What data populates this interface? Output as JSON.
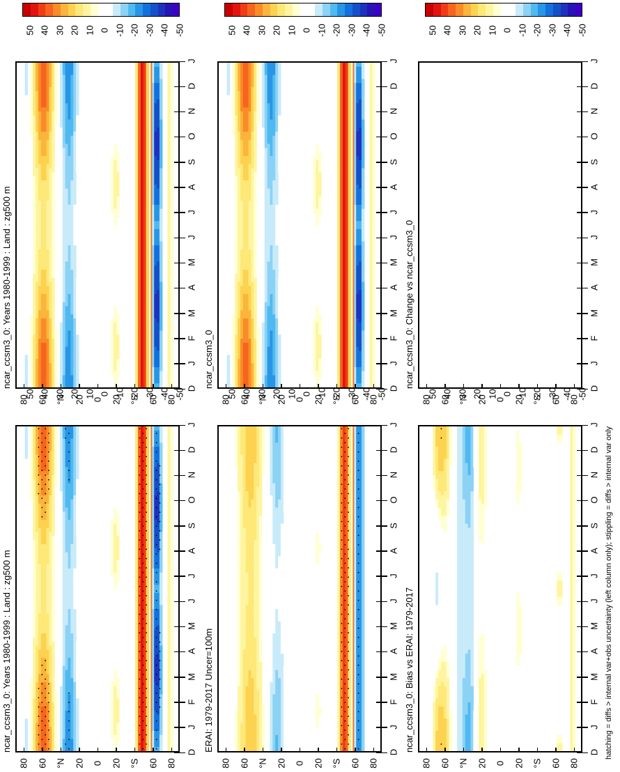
{
  "figure": {
    "footnote": "hatching = diffs > internal var+obs uncertainty (left column only); stippling = diffs > internal var only"
  },
  "panels": [
    {
      "id": "model-left",
      "title": "ncar_ccsm3_0: Years 1980-1999 : Land : zg500 m"
    },
    {
      "id": "model-right",
      "title": "ncar_ccsm3_0: Years 1980-1999 : Land : zg500 m"
    },
    {
      "id": "obs-left",
      "title": "ERAI: 1979-2017 Uncer=100m"
    },
    {
      "id": "model-right-2",
      "title": "ncar_ccsm3_0"
    },
    {
      "id": "bias-left",
      "title": "ncar_ccsm3_0: Bias vs ERAI: 1979-2017"
    },
    {
      "id": "change-right",
      "title": "ncar_ccsm3_0: Change vs ncar_ccsm3_0"
    }
  ],
  "axes": {
    "latitude_labels": [
      "80",
      "60",
      "°N",
      "20",
      "0",
      "20",
      "°S",
      "60",
      "80"
    ],
    "month_labels": [
      "D",
      "J",
      "F",
      "M",
      "A",
      "M",
      "J",
      "J",
      "A",
      "S",
      "O",
      "N",
      "D",
      "J"
    ]
  },
  "colorbar": {
    "labels": [
      "50",
      "40",
      "30",
      "20",
      "10",
      "0",
      "-10",
      "-20",
      "-30",
      "-40",
      "-50"
    ],
    "colors": [
      "#c80000",
      "#e2140f",
      "#f03c14",
      "#f7641e",
      "#f98c28",
      "#fbb43c",
      "#fcd250",
      "#fde878",
      "#fff5a0",
      "#ffffd2",
      "#ffffff",
      "#ffffff",
      "#c8ebfa",
      "#8cd2f5",
      "#50b9f0",
      "#2896e6",
      "#1470dc",
      "#1450c8",
      "#1e32be",
      "#2814b4",
      "#3c00c8"
    ]
  },
  "chart_data": [
    {
      "type": "heatmap",
      "title": "ncar_ccsm3_0: Years 1980-1999 : Land : zg500 m",
      "x": "latitude (80N to 80S)",
      "y": "month (D to J)",
      "colorbar_range": [
        -50,
        50
      ],
      "description": "Positive anomalies (red) near 60N and 50S; negative (blue) near 30N and 65S; overlay of stippling"
    },
    {
      "type": "heatmap",
      "title": "ncar_ccsm3_0: Years 1980-1999 : Land : zg500 m",
      "colorbar_range": [
        -50,
        50
      ]
    },
    {
      "type": "heatmap",
      "title": "ERAI: 1979-2017 Uncer=100m",
      "colorbar_range": [
        -50,
        50
      ]
    },
    {
      "type": "heatmap",
      "title": "ncar_ccsm3_0",
      "colorbar_range": [
        -50,
        50
      ]
    },
    {
      "type": "heatmap",
      "title": "ncar_ccsm3_0: Bias vs ERAI: 1979-2017",
      "colorbar_range": [
        -50,
        50
      ]
    },
    {
      "type": "heatmap",
      "title": "ncar_ccsm3_0: Change vs ncar_ccsm3_0",
      "colorbar_range": [
        -50,
        50
      ],
      "empty": true
    }
  ]
}
